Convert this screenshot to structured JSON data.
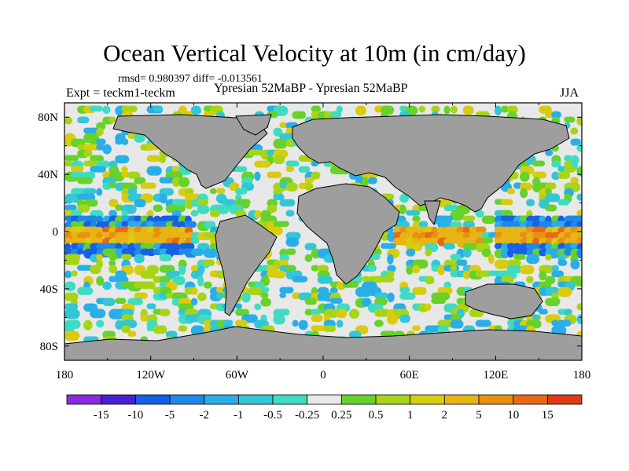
{
  "chart_data": {
    "type": "heatmap",
    "title": "Ocean Vertical Velocity at 10m (in cm/day)",
    "stats_line": "rmsd= 0.980397  diff= -0.013561",
    "left_label": "Expt = teckm1-teckm",
    "center_label": "Ypresian  52MaBP - Ypresian  52MaBP",
    "right_label": "JJA",
    "x_axis": {
      "range": [
        -180,
        180
      ],
      "ticks": [
        -180,
        -120,
        -60,
        0,
        60,
        120,
        180
      ],
      "tick_labels": [
        "180",
        "120W",
        "60W",
        "0",
        "60E",
        "120E",
        "180"
      ]
    },
    "y_axis": {
      "range": [
        -90,
        90
      ],
      "ticks": [
        80,
        40,
        0,
        -40,
        -80
      ],
      "tick_labels": [
        "80N",
        "40N",
        "0",
        "40S",
        "80S"
      ]
    },
    "colorbar": {
      "levels": [
        "-15",
        "-10",
        "-5",
        "-2",
        "-1",
        "-0.5",
        "-0.25",
        "0.25",
        "0.5",
        "1",
        "2",
        "5",
        "10",
        "15"
      ],
      "colors": [
        "#8a2be2",
        "#4b1fd6",
        "#1560e6",
        "#1e88e8",
        "#29aee8",
        "#33c6d6",
        "#40dcc2",
        "#e8e8e8",
        "#66d22a",
        "#a8d418",
        "#d8cc10",
        "#e8b414",
        "#ea9010",
        "#e86814",
        "#e03a12"
      ]
    },
    "land_color": "#9e9e9e",
    "neutral_color": "#e8e8e8",
    "features": [
      {
        "name": "equatorial-east-pacific",
        "lon": [
          -180,
          -100
        ],
        "lat": [
          -4,
          4
        ],
        "level": "upwelling",
        "value_range": [
          2,
          15
        ]
      },
      {
        "name": "equatorial-west-pacific",
        "lon": [
          120,
          180
        ],
        "lat": [
          -4,
          4
        ],
        "level": "upwelling",
        "value_range": [
          2,
          15
        ]
      },
      {
        "name": "equatorial-indian",
        "lon": [
          50,
          110
        ],
        "lat": [
          -4,
          4
        ],
        "level": "upwelling",
        "value_range": [
          1,
          10
        ]
      },
      {
        "name": "off-equator-pacific",
        "lon": [
          -180,
          -100
        ],
        "lat": [
          -12,
          12
        ],
        "level": "downwelling",
        "value_range": [
          -10,
          -1
        ]
      },
      {
        "name": "southern-ocean",
        "lon": [
          -180,
          180
        ],
        "lat": [
          -70,
          -45
        ],
        "level": "mixed",
        "value_range": [
          -2,
          2
        ]
      }
    ]
  }
}
